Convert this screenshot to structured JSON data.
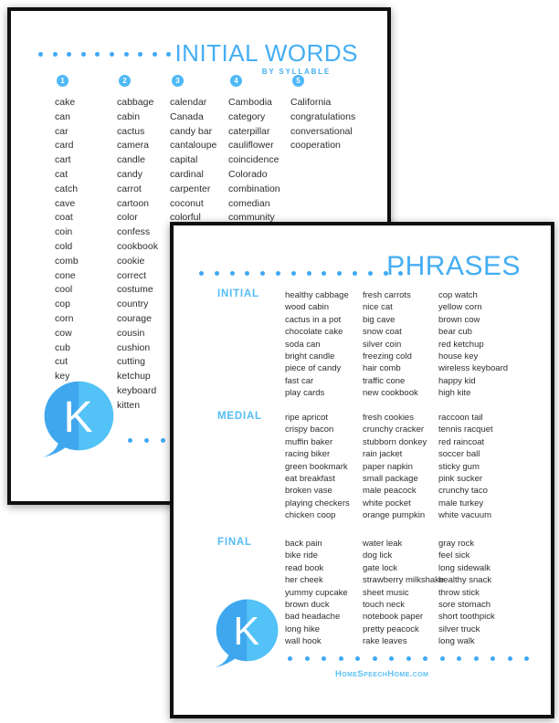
{
  "colors": {
    "accent_blue": "#45AEF3",
    "dot_blue": "#3FA9F5",
    "badge_blue": "#4FB8F5",
    "section_label_blue": "#55BDF6",
    "body_text": "#2e2e2e",
    "logo_left": "#3FA7EE",
    "logo_right": "#52C2F7",
    "page_border": "#101010"
  },
  "page_initial_words": {
    "title": "INITIAL WORDS",
    "subtitle": "BY SYLLABLE",
    "logo_letter": "K",
    "columns": [
      {
        "number": "1",
        "words": [
          "cake",
          "can",
          "car",
          "card",
          "cart",
          "cat",
          "catch",
          "cave",
          "coat",
          "coin",
          "cold",
          "comb",
          "cone",
          "cool",
          "cop",
          "corn",
          "cow",
          "cub",
          "cut",
          "key"
        ]
      },
      {
        "number": "2",
        "words": [
          "cabbage",
          "cabin",
          "cactus",
          "camera",
          "candle",
          "candy",
          "carrot",
          "cartoon",
          "color",
          "confess",
          "cookbook",
          "cookie",
          "correct",
          "costume",
          "country",
          "courage",
          "cousin",
          "cushion",
          "cutting",
          "ketchup",
          "keyboard",
          "kitten"
        ]
      },
      {
        "number": "3",
        "words": [
          "calendar",
          "Canada",
          "candy bar",
          "cantaloupe",
          "capital",
          "cardinal",
          "carpenter",
          "coconut",
          "colorful"
        ]
      },
      {
        "number": "4",
        "words": [
          "Cambodia",
          "category",
          "caterpillar",
          "cauliflower",
          "coincidence",
          "Colorado",
          "combination",
          "comedian",
          "community"
        ]
      },
      {
        "number": "5",
        "words": [
          "California",
          "congratulations",
          "conversational",
          "cooperation"
        ]
      }
    ]
  },
  "page_phrases": {
    "title": "PHRASES",
    "logo_letter": "K",
    "footer": "HomeSpeechHome.com",
    "sections": [
      {
        "label": "INITIAL",
        "columns": [
          [
            "healthy cabbage",
            "wood cabin",
            "cactus in a pot",
            "chocolate cake",
            "soda can",
            "bright candle",
            "piece of candy",
            "fast car",
            "play cards"
          ],
          [
            "fresh carrots",
            "nice cat",
            "big cave",
            "snow coat",
            "silver coin",
            "freezing cold",
            "hair comb",
            "traffic cone",
            "new cookbook"
          ],
          [
            "cop watch",
            "yellow corn",
            "brown cow",
            "bear cub",
            "red ketchup",
            "house key",
            "wireless keyboard",
            "happy kid",
            "high kite"
          ]
        ]
      },
      {
        "label": "MEDIAL",
        "columns": [
          [
            "ripe apricot",
            "crispy bacon",
            "muffin baker",
            "racing biker",
            "green bookmark",
            "eat breakfast",
            "broken vase",
            "playing checkers",
            "chicken coop"
          ],
          [
            "fresh cookies",
            "crunchy cracker",
            "stubborn donkey",
            "rain jacket",
            "paper napkin",
            "small package",
            "male peacock",
            "white pocket",
            "orange pumpkin"
          ],
          [
            "raccoon tail",
            "tennis racquet",
            "red raincoat",
            "soccer ball",
            "sticky gum",
            "pink sucker",
            "crunchy taco",
            "male turkey",
            "white vacuum"
          ]
        ]
      },
      {
        "label": "FINAL",
        "columns": [
          [
            "back pain",
            "bike ride",
            "read book",
            "her cheek",
            "yummy cupcake",
            "brown duck",
            "bad headache",
            "long hike",
            "wall hook"
          ],
          [
            "water leak",
            "dog lick",
            "gate lock",
            "strawberry milkshake",
            "sheet music",
            "touch neck",
            "notebook paper",
            "pretty peacock",
            "rake leaves"
          ],
          [
            "gray rock",
            "feel sick",
            "long sidewalk",
            "healthy snack",
            "throw stick",
            "sore stomach",
            "short toothpick",
            "silver truck",
            "long walk"
          ]
        ]
      }
    ]
  }
}
